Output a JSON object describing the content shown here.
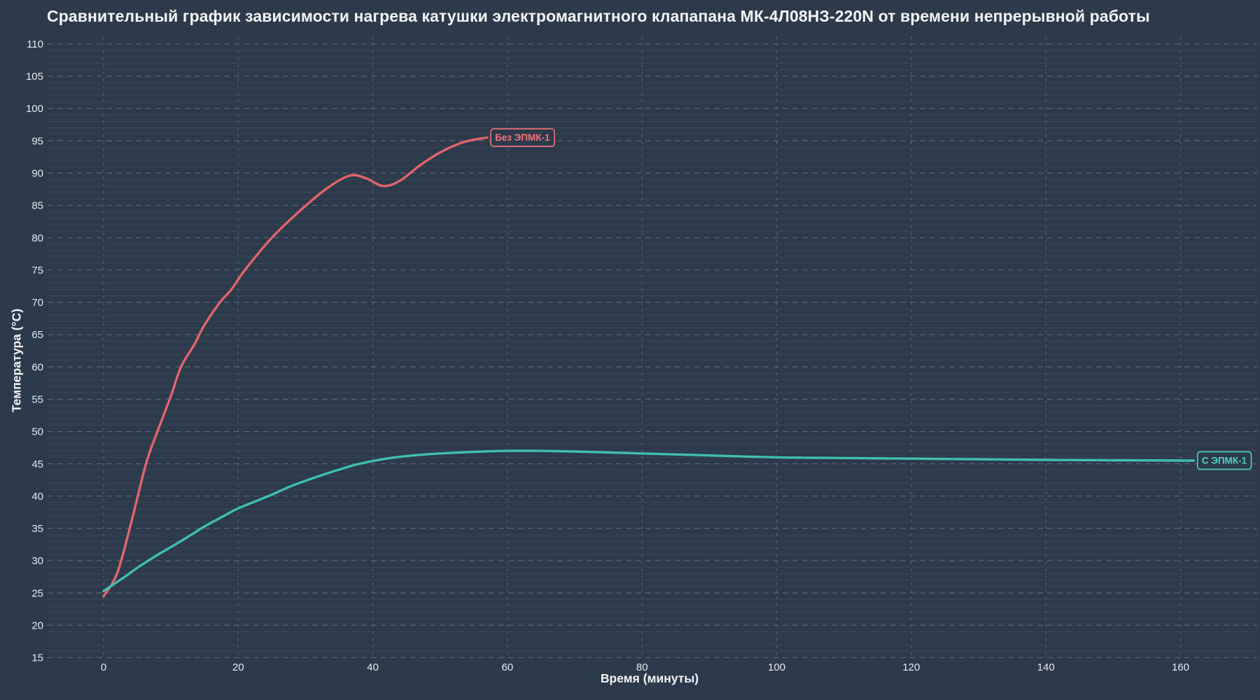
{
  "page": {
    "background": "#2d3a4b"
  },
  "chart_data": {
    "type": "line",
    "title": "Сравнительный график зависимости нагрева катушки электромагнитного клапапана МК-4Л08НЗ-220N от времени непрерывной работы",
    "xlabel": "Время (минуты)",
    "ylabel": "Температура (°C)",
    "xlim": [
      0,
      160
    ],
    "ylim": [
      15,
      110
    ],
    "x_ticks": [
      0,
      20,
      40,
      60,
      80,
      100,
      120,
      140,
      160
    ],
    "y_ticks": [
      15,
      20,
      25,
      30,
      35,
      40,
      45,
      50,
      55,
      60,
      65,
      70,
      75,
      80,
      85,
      90,
      95,
      100,
      105,
      110
    ],
    "y_minor_step": 1,
    "grid": "major dashed, minor solid horizontal",
    "legend_position": "labels at line ends",
    "colors": {
      "background": "#2d3a4b",
      "major_grid": "#5a6575",
      "minor_grid": "#3a4758",
      "tick_label": "#e6eaee",
      "title_text": "#f2f4f6"
    },
    "series": [
      {
        "name": "Без ЭПМК-1",
        "color": "#e0646c",
        "label_color": "#f0737b",
        "x": [
          0,
          2,
          4,
          6.3,
          8,
          10,
          11.5,
          13.5,
          15,
          17.3,
          19,
          21,
          25,
          29,
          33,
          36.5,
          39,
          41.5,
          44,
          47,
          50,
          53.5,
          57
        ],
        "y": [
          24.5,
          28,
          35.5,
          45,
          50,
          55.5,
          60,
          63.5,
          66.5,
          70,
          72,
          75,
          80,
          84,
          87.5,
          89.6,
          89.2,
          88.0,
          88.8,
          91.2,
          93.2,
          94.8,
          95.5
        ]
      },
      {
        "name": "С ЭПМК-1",
        "color": "#3fbfb1",
        "label_color": "#4ed2c3",
        "x": [
          0,
          3,
          5,
          8,
          10,
          13,
          15,
          18,
          20,
          24.5,
          28,
          32,
          35,
          38,
          42,
          46,
          50,
          55,
          60,
          65,
          70,
          80,
          90,
          100,
          110,
          120,
          130,
          140,
          150,
          162
        ],
        "y": [
          25.3,
          27.4,
          28.9,
          30.9,
          32.1,
          34.0,
          35.3,
          37.0,
          38.1,
          40.0,
          41.6,
          43.1,
          44.1,
          45.0,
          45.8,
          46.3,
          46.6,
          46.85,
          47.0,
          47.0,
          46.9,
          46.6,
          46.3,
          46.0,
          45.9,
          45.8,
          45.7,
          45.6,
          45.55,
          45.5
        ]
      }
    ]
  }
}
